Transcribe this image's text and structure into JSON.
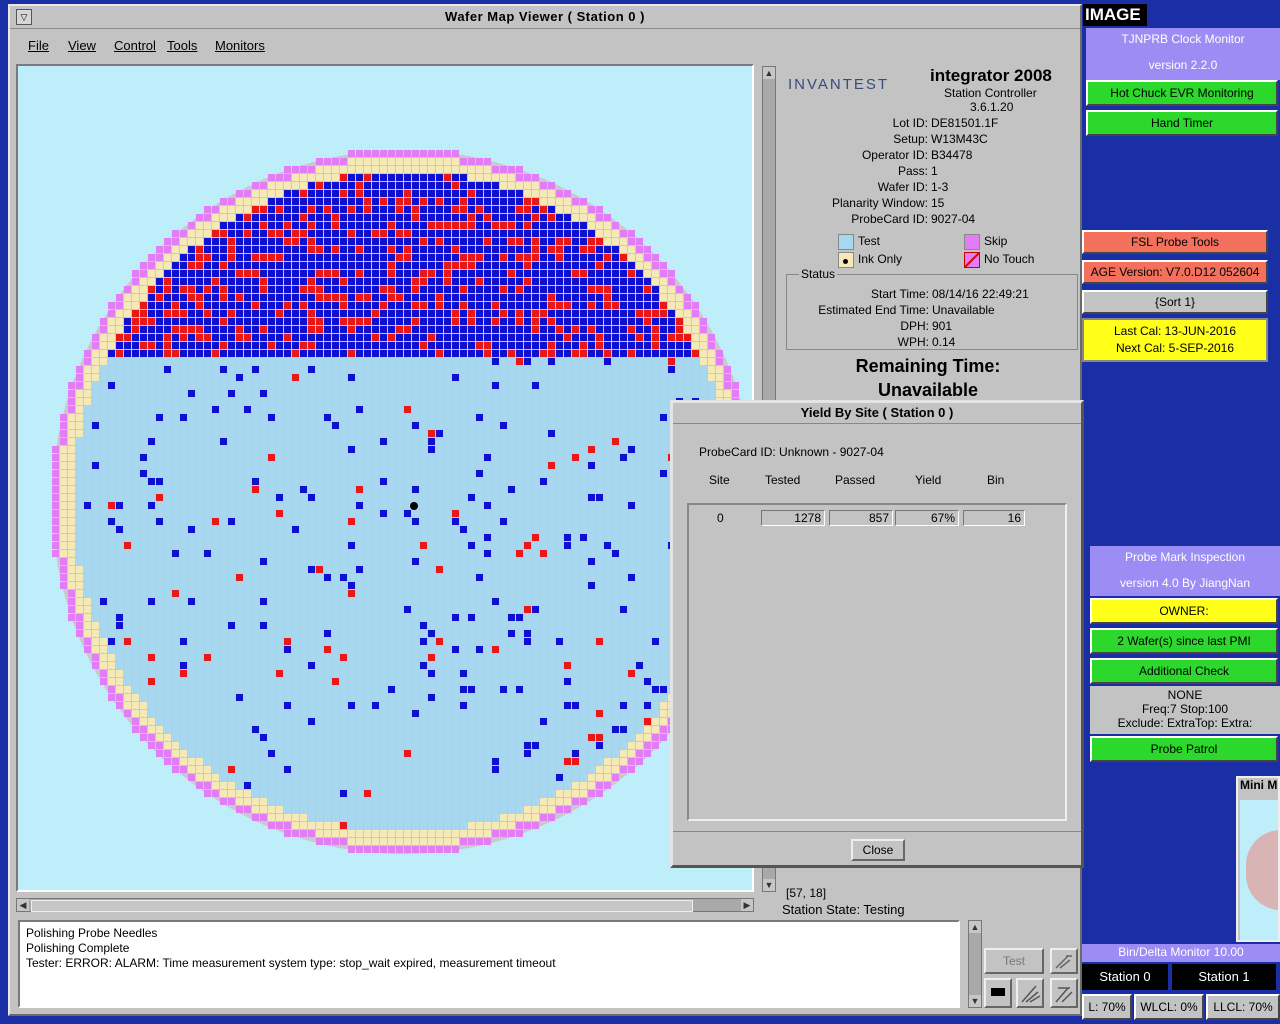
{
  "main_window": {
    "title": "Wafer Map Viewer ( Station 0 )",
    "sys_icon": "▽",
    "menu": [
      "File",
      "View",
      "Control",
      "Tools",
      "Monitors"
    ]
  },
  "info": {
    "logo": "INVANTEST",
    "product": "integrator 2008",
    "subtitle": "Station Controller",
    "version": "3.6.1.20",
    "fields": [
      {
        "label": "Lot ID:",
        "value": "DE81501.1F"
      },
      {
        "label": "Setup:",
        "value": "W13M43C"
      },
      {
        "label": "Operator ID:",
        "value": "B34478"
      },
      {
        "label": "Pass:",
        "value": "1"
      },
      {
        "label": "Wafer ID:",
        "value": "1-3"
      },
      {
        "label": "Planarity Window:",
        "value": "15"
      },
      {
        "label": "ProbeCard ID:",
        "value": "9027-04"
      }
    ],
    "legend": {
      "test": "Test",
      "skip": "Skip",
      "ink_only": "Ink Only",
      "no_touch": "No Touch"
    },
    "status_title": "Status",
    "status_fields": [
      {
        "label": "Start Time:",
        "value": "08/14/16 22:49:21"
      },
      {
        "label": "Estimated End Time:",
        "value": "Unavailable"
      },
      {
        "label": "DPH:",
        "value": "901"
      },
      {
        "label": "WPH:",
        "value": "0.14"
      }
    ],
    "remaining_label": "Remaining Time:",
    "remaining_value": "Unavailable",
    "coords": "[57, 18]",
    "station_state": "Station State:  Testing"
  },
  "log_lines": [
    "Polishing Probe Needles",
    "Polishing Complete",
    " Tester: ERROR: ALARM: Time measurement system type: stop_wait expired, measurement timeout"
  ],
  "test_button": "Test",
  "dialog": {
    "title": "Yield By Site ( Station 0 )",
    "probecard": "ProbeCard ID:    Unknown - 9027-04",
    "headers": [
      "Site",
      "Tested",
      "Passed",
      "Yield",
      "Bin"
    ],
    "row": {
      "site": "0",
      "tested": "1278",
      "passed": "857",
      "yield": "67%",
      "bin": "16"
    },
    "close": "Close"
  },
  "right": {
    "image_label": "IMAGE",
    "clock_title": "TJNPRB Clock Monitor",
    "clock_version": "version 2.2.0",
    "hot_chuck": "Hot Chuck EVR Monitoring",
    "hand_timer": "Hand Timer",
    "fsl": "FSL Probe Tools",
    "age_version": "AGE Version: V7.0.D12 052604",
    "sort": "{Sort 1}",
    "last_cal": "Last Cal: 13-JUN-2016",
    "next_cal": "Next Cal: 5-SEP-2016",
    "pmi_title": "Probe Mark Inspection",
    "pmi_version": "version 4.0 By JiangNan",
    "owner": "OWNER:",
    "wafers_since": "2 Wafer(s) since last PMI",
    "additional": "Additional Check",
    "none": "NONE",
    "freq": "Freq:7 Stop:100",
    "exclude": "Exclude: ExtraTop: Extra:",
    "patrol": "Probe Patrol",
    "mini": "Mini M",
    "bin_delta": "Bin/Delta Monitor 10.00",
    "station0": "Station 0",
    "station1": "Station 1",
    "lcl1": "L: 70%",
    "wlcl": "WLCL: 0%",
    "llcl": "LLCL: 70%"
  },
  "colors": {
    "test": "#a8d8f0",
    "fail_blue": "#1010d0",
    "fail_red": "#e81818",
    "edge_cream": "#f6e9b8",
    "skip_violet": "#e27ef5"
  }
}
